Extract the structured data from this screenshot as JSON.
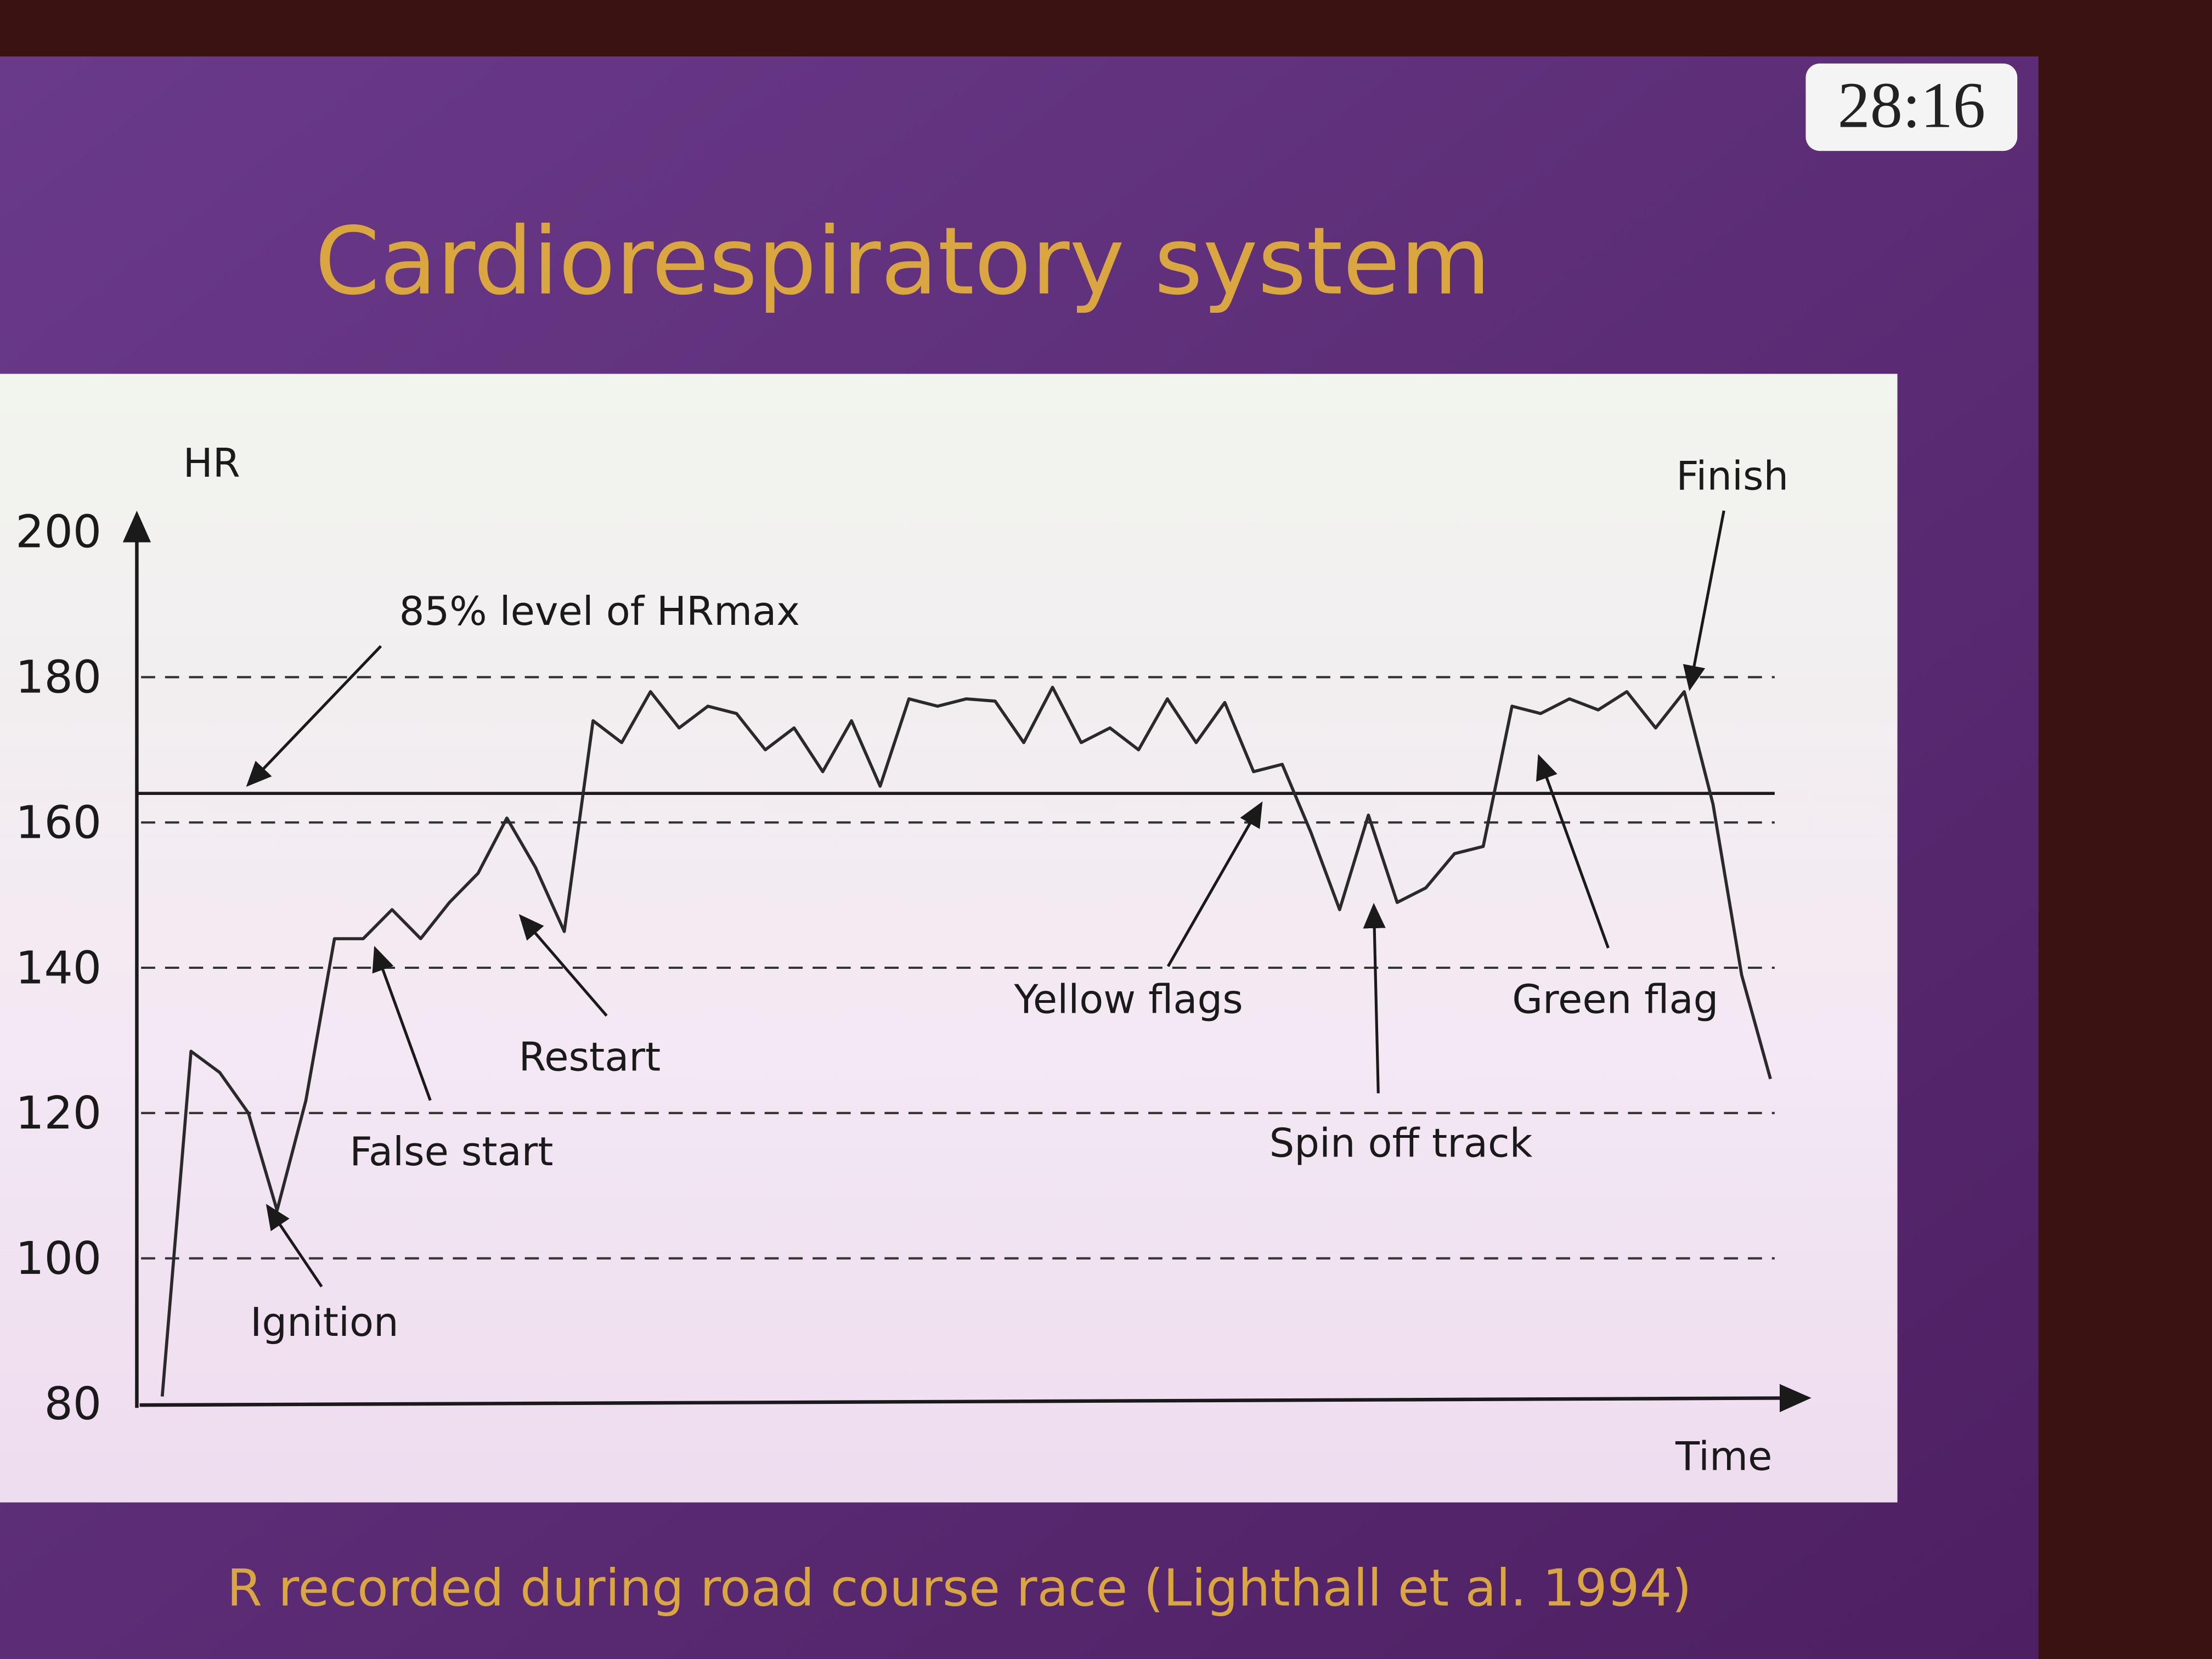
{
  "timer": "28:16",
  "chart_data": {
    "type": "line",
    "title": "Cardiorespiratory system",
    "y_label": "HR",
    "x_label": "Time",
    "caption": "R recorded during road course race (Lighthall et al. 1994)",
    "values": [
      81,
      128.5,
      125.6,
      120,
      106.6,
      121.7,
      144,
      144,
      148,
      144,
      149,
      153,
      160.6,
      153.8,
      145,
      174,
      171,
      178,
      173,
      176,
      175,
      170,
      173,
      167,
      174,
      165,
      177,
      176,
      177,
      176.7,
      171,
      178.6,
      171,
      173,
      170,
      177,
      171,
      176.5,
      167,
      168,
      158.6,
      148,
      161,
      149,
      151,
      155.7,
      156.7,
      176,
      175,
      177,
      175.5,
      178,
      173,
      178,
      162.5,
      139,
      124.7
    ],
    "color": "#2a2a2a",
    "ylim": [
      80,
      200
    ],
    "yticks": [
      80,
      100,
      120,
      140,
      160,
      180,
      200
    ],
    "grid": true,
    "reference_line": {
      "value": 164,
      "label": "85% level of HRmax"
    },
    "annotations": [
      "Ignition",
      "False start",
      "Restart",
      "Yellow flags",
      "Spin off track",
      "Green flag",
      "Finish"
    ]
  }
}
